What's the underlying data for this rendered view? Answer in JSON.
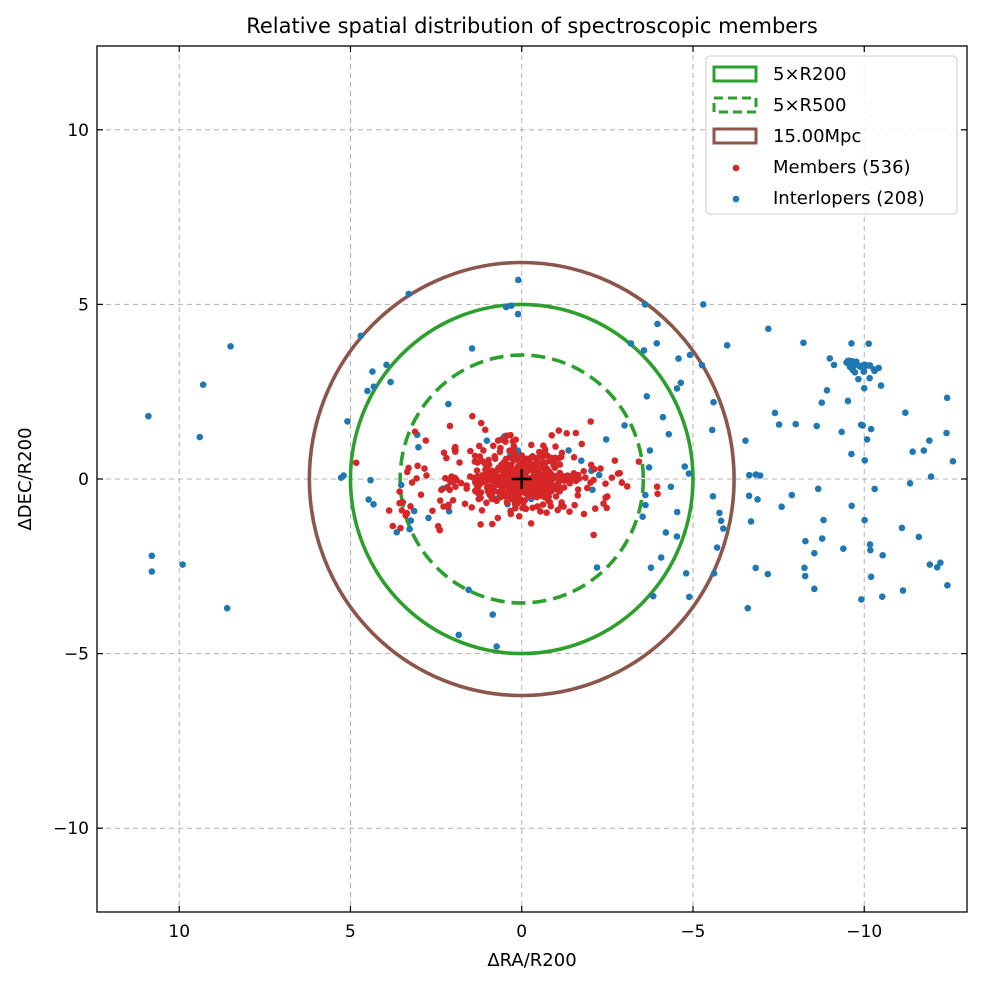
{
  "chart_data": {
    "type": "scatter",
    "title": "Relative spatial distribution of spectroscopic members",
    "xlabel": "ΔRA/R200",
    "ylabel": "ΔDEC/R200",
    "xlim": [
      12.4,
      -13.0
    ],
    "ylim": [
      -12.4,
      12.4
    ],
    "x_inverted": true,
    "grid": true,
    "legend_position": "top-right",
    "xticks": [
      10,
      5,
      0,
      -5,
      -10
    ],
    "xtick_labels": [
      "10",
      "5",
      "0",
      "−5",
      "−10"
    ],
    "yticks": [
      10,
      5,
      0,
      -5,
      -10
    ],
    "ytick_labels": [
      "10",
      "5",
      "0",
      "−5",
      "−10"
    ],
    "center_marker": {
      "x": 0,
      "y": 0,
      "color": "#000000"
    },
    "circles": [
      {
        "label": "5×R200",
        "radius": 5.0,
        "color": "#2ca02c",
        "style": "solid"
      },
      {
        "label": "5×R500",
        "radius": 3.55,
        "color": "#2ca02c",
        "style": "dashed"
      },
      {
        "label": "15.00Mpc",
        "radius": 6.2,
        "color": "#8c564b",
        "style": "solid"
      }
    ],
    "series": [
      {
        "name": "Members (536)",
        "color": "#d62728",
        "count": 536,
        "sample_points": [
          [
            0.0,
            0.0
          ],
          [
            0.5,
            0.3
          ],
          [
            -0.4,
            0.2
          ],
          [
            1.0,
            0.4
          ],
          [
            -1.0,
            -0.2
          ],
          [
            1.5,
            0.8
          ],
          [
            -1.6,
            0.1
          ],
          [
            2.2,
            0.6
          ],
          [
            -2.3,
            0.3
          ],
          [
            2.8,
            1.1
          ],
          [
            -2.5,
            -0.5
          ],
          [
            3.2,
            -0.1
          ],
          [
            -2.1,
            -1.6
          ],
          [
            1.2,
            -1.3
          ],
          [
            3.5,
            -0.9
          ]
        ]
      },
      {
        "name": "Interlopers (208)",
        "color": "#1f77b4",
        "count": 208,
        "sample_points": [
          [
            10.9,
            1.8
          ],
          [
            10.8,
            -2.2
          ],
          [
            10.8,
            -2.65
          ],
          [
            9.9,
            -2.45
          ],
          [
            9.4,
            1.2
          ],
          [
            9.3,
            2.7
          ],
          [
            8.6,
            -3.7
          ],
          [
            8.5,
            3.8
          ],
          [
            5.2,
            0.1
          ],
          [
            4.7,
            4.1
          ],
          [
            3.3,
            5.3
          ],
          [
            0.1,
            5.7
          ],
          [
            -3.6,
            5.0
          ],
          [
            -4.8,
            -2.7
          ],
          [
            -5.3,
            5.0
          ],
          [
            -5.6,
            2.2
          ],
          [
            -6.6,
            -3.7
          ],
          [
            -7.2,
            4.3
          ],
          [
            -9.6,
            3.2
          ],
          [
            -10.0,
            2.6
          ],
          [
            -10.2,
            -2.8
          ],
          [
            -11.2,
            1.9
          ],
          [
            -11.9,
            1.1
          ],
          [
            -11.1,
            -1.4
          ]
        ]
      }
    ]
  }
}
